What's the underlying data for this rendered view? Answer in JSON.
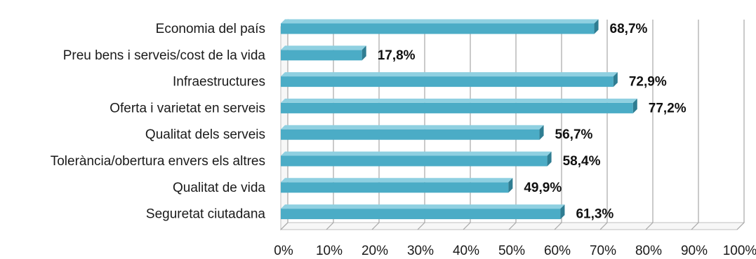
{
  "chart_data": {
    "type": "bar",
    "orientation": "horizontal",
    "style": "3d",
    "categories": [
      "Economia del país",
      "Preu bens i serveis/cost de la vida",
      "Infraestructures",
      "Oferta i varietat en serveis",
      "Qualitat dels serveis",
      "Tolerància/obertura envers els altres",
      "Qualitat de vida",
      "Seguretat ciutadana"
    ],
    "values": [
      68.7,
      17.8,
      72.9,
      77.2,
      56.7,
      58.4,
      49.9,
      61.3
    ],
    "data_labels": [
      "68,7%",
      "17,8%",
      "72,9%",
      "77,2%",
      "56,7%",
      "58,4%",
      "49,9%",
      "61,3%"
    ],
    "xlim": [
      0,
      100
    ],
    "xticks": [
      0,
      10,
      20,
      30,
      40,
      50,
      60,
      70,
      80,
      90,
      100
    ],
    "xtick_labels": [
      "0%",
      "10%",
      "20%",
      "30%",
      "40%",
      "50%",
      "60%",
      "70%",
      "80%",
      "90%",
      "100%"
    ],
    "grid": true,
    "legend": false,
    "title": "",
    "xlabel": "",
    "ylabel": "",
    "colors": {
      "bar_front": "#4bacc6",
      "bar_top": "#8fd0e1",
      "bar_side": "#2f7d92",
      "grid": "#a6a6a6",
      "wall": "#bfbfbf"
    }
  }
}
